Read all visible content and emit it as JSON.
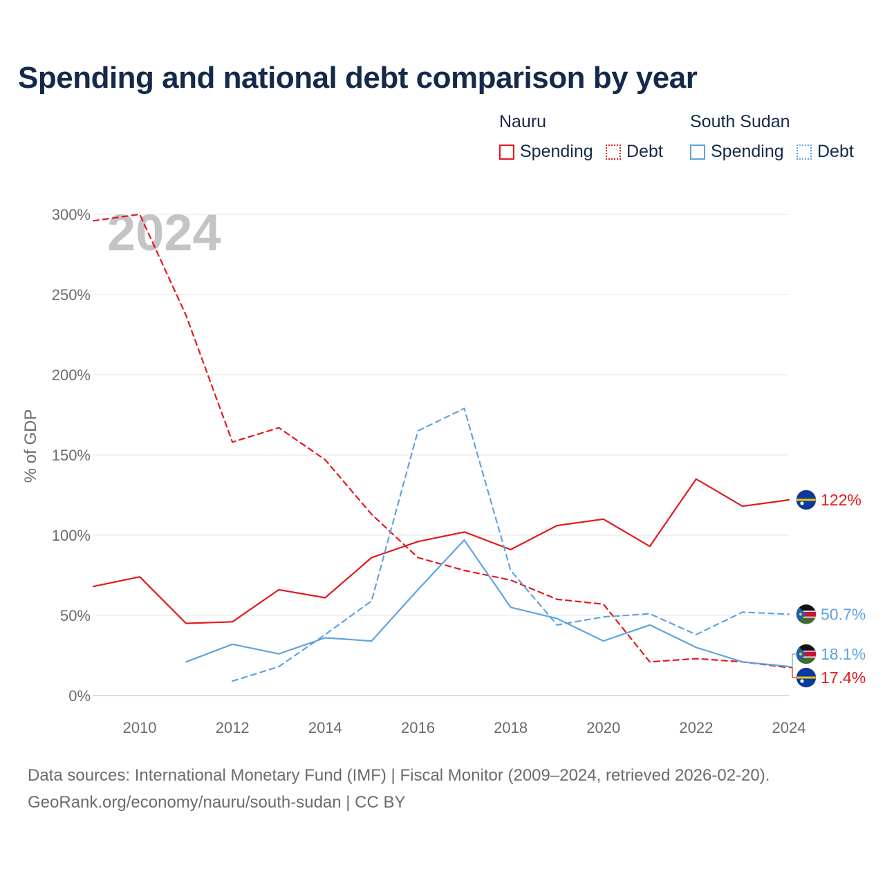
{
  "title": "Spending and national debt comparison by year",
  "legend": {
    "groups": [
      {
        "name": "Nauru",
        "color": "#e3181c",
        "items": [
          {
            "label": "Spending",
            "style": "solid"
          },
          {
            "label": "Debt",
            "style": "dotted"
          }
        ]
      },
      {
        "name": "South Sudan",
        "color": "#5fa3e0",
        "items": [
          {
            "label": "Spending",
            "style": "solid"
          },
          {
            "label": "Debt",
            "style": "dotted"
          }
        ]
      }
    ]
  },
  "chart_data": {
    "type": "line",
    "year_watermark": "2024",
    "ylabel": "% of GDP",
    "xlim": [
      2009,
      2024
    ],
    "ylim": [
      0,
      300
    ],
    "yticks": [
      0,
      50,
      100,
      150,
      200,
      250,
      300
    ],
    "ytick_labels": [
      "0%",
      "50%",
      "100%",
      "150%",
      "200%",
      "250%",
      "300%"
    ],
    "xticks": [
      2010,
      2012,
      2014,
      2016,
      2018,
      2020,
      2022,
      2024
    ],
    "xtick_labels": [
      "2010",
      "2012",
      "2014",
      "2016",
      "2018",
      "2020",
      "2022",
      "2024"
    ],
    "grid": true,
    "series": [
      {
        "name": "Nauru Spending",
        "country": "Nauru",
        "color": "#e3181c",
        "dash": "solid",
        "x": [
          2009,
          2010,
          2011,
          2012,
          2013,
          2014,
          2015,
          2016,
          2017,
          2018,
          2019,
          2020,
          2021,
          2022,
          2023,
          2024
        ],
        "values": [
          68,
          74,
          45,
          46,
          66,
          61,
          86,
          96,
          102,
          91,
          106,
          110,
          93,
          135,
          118,
          122
        ],
        "end_label": "122%",
        "flag": "nauru"
      },
      {
        "name": "Nauru Debt",
        "country": "Nauru",
        "color": "#e3181c",
        "dash": "dashed",
        "x": [
          2009,
          2010,
          2011,
          2012,
          2013,
          2014,
          2015,
          2016,
          2017,
          2018,
          2019,
          2020,
          2021,
          2022,
          2023,
          2024
        ],
        "values": [
          296,
          300,
          237,
          158,
          167,
          147,
          113,
          86,
          78,
          72,
          60,
          57,
          21,
          23,
          21,
          17.4
        ],
        "end_label": "17.4%",
        "flag": "nauru"
      },
      {
        "name": "South Sudan Spending",
        "country": "South Sudan",
        "color": "#5fa3e0",
        "dash": "solid",
        "x": [
          2011,
          2012,
          2013,
          2014,
          2015,
          2016,
          2017,
          2018,
          2019,
          2020,
          2021,
          2022,
          2023,
          2024
        ],
        "values": [
          21,
          32,
          26,
          36,
          34,
          66,
          97,
          55,
          48,
          34,
          44,
          30,
          21,
          18.1
        ],
        "end_label": "18.1%",
        "flag": "south-sudan"
      },
      {
        "name": "South Sudan Debt",
        "country": "South Sudan",
        "color": "#5fa3e0",
        "dash": "dashed",
        "x": [
          2012,
          2013,
          2014,
          2015,
          2016,
          2017,
          2018,
          2019,
          2020,
          2021,
          2022,
          2023,
          2024
        ],
        "values": [
          9,
          18,
          38,
          59,
          165,
          179,
          78,
          44,
          49,
          51,
          38,
          52,
          50.7
        ],
        "end_label": "50.7%",
        "flag": "south-sudan"
      }
    ]
  },
  "footer": {
    "source": "Data sources: International Monetary Fund (IMF) | Fiscal Monitor (2009–2024, retrieved 2026-02-20).",
    "credit": "GeoRank.org/economy/nauru/south-sudan | CC BY"
  }
}
